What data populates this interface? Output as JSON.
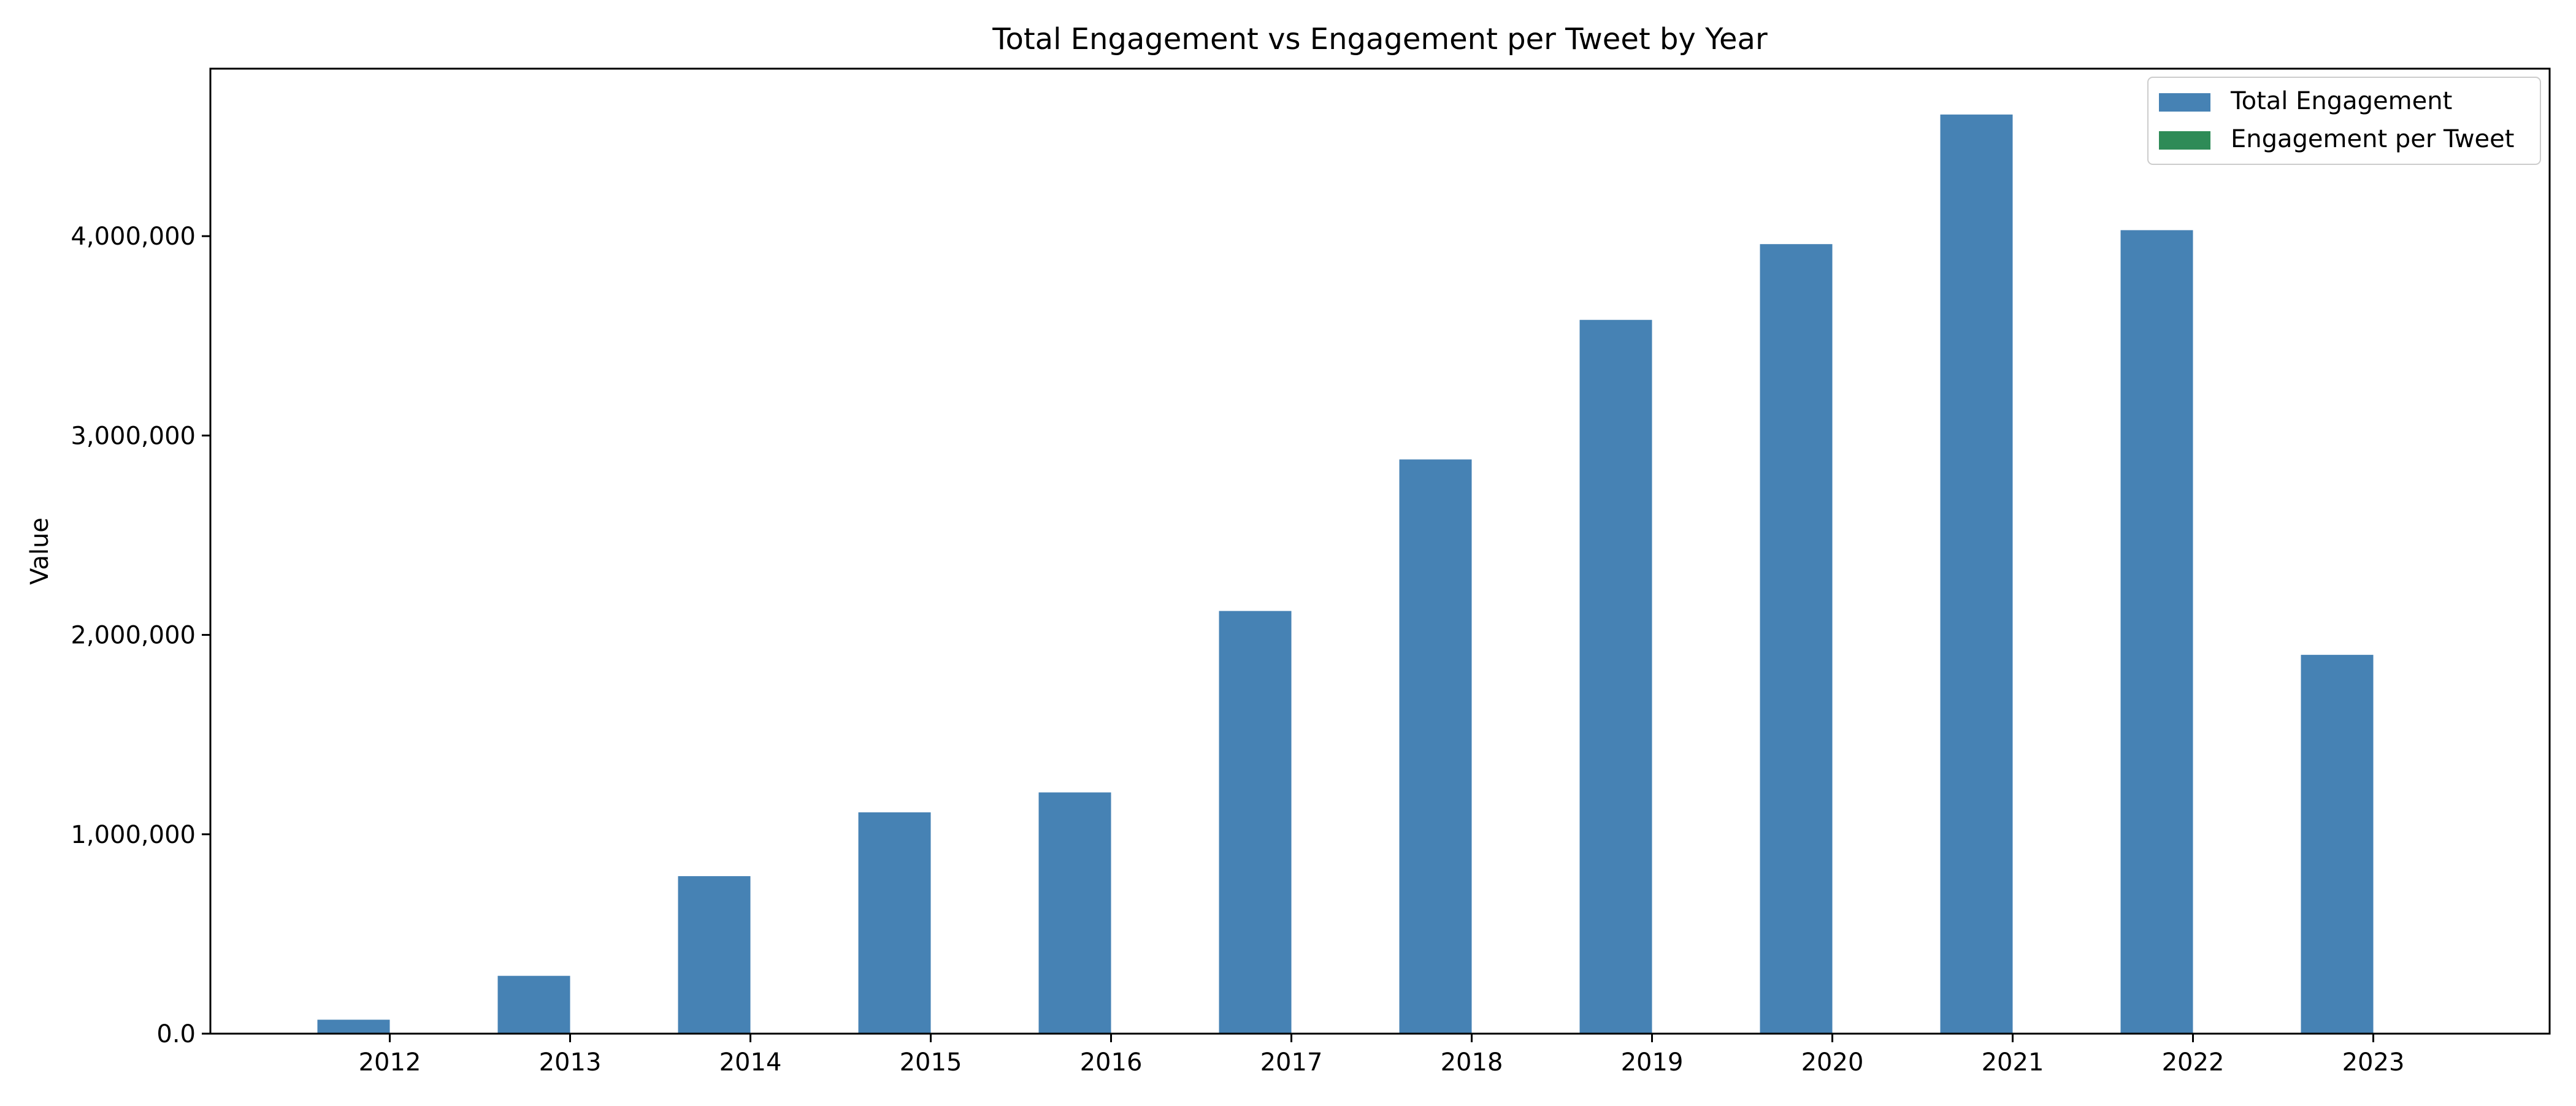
{
  "chart_data": {
    "type": "bar",
    "title": "Total Engagement vs Engagement per Tweet by Year",
    "xlabel": "",
    "ylabel": "Value",
    "categories": [
      "2012",
      "2013",
      "2014",
      "2015",
      "2016",
      "2017",
      "2018",
      "2019",
      "2020",
      "2021",
      "2022",
      "2023"
    ],
    "series": [
      {
        "name": "Total Engagement",
        "color": "#4682b4",
        "values": [
          70000,
          290000,
          790000,
          1110000,
          1210000,
          2120000,
          2880000,
          3580000,
          3960000,
          4610000,
          4030000,
          1900000
        ]
      },
      {
        "name": "Engagement per Tweet",
        "color": "#2e8b57",
        "values": [
          90,
          110,
          150,
          160,
          170,
          210,
          240,
          260,
          280,
          300,
          290,
          250
        ]
      }
    ],
    "yticks": [
      {
        "value": 0,
        "label": "0.0"
      },
      {
        "value": 1000000,
        "label": "1,000,000"
      },
      {
        "value": 2000000,
        "label": "2,000,000"
      },
      {
        "value": 3000000,
        "label": "3,000,000"
      },
      {
        "value": 4000000,
        "label": "4,000,000"
      }
    ],
    "ylim": [
      0,
      4840000
    ],
    "grid": false,
    "legend_position": "top-right"
  }
}
